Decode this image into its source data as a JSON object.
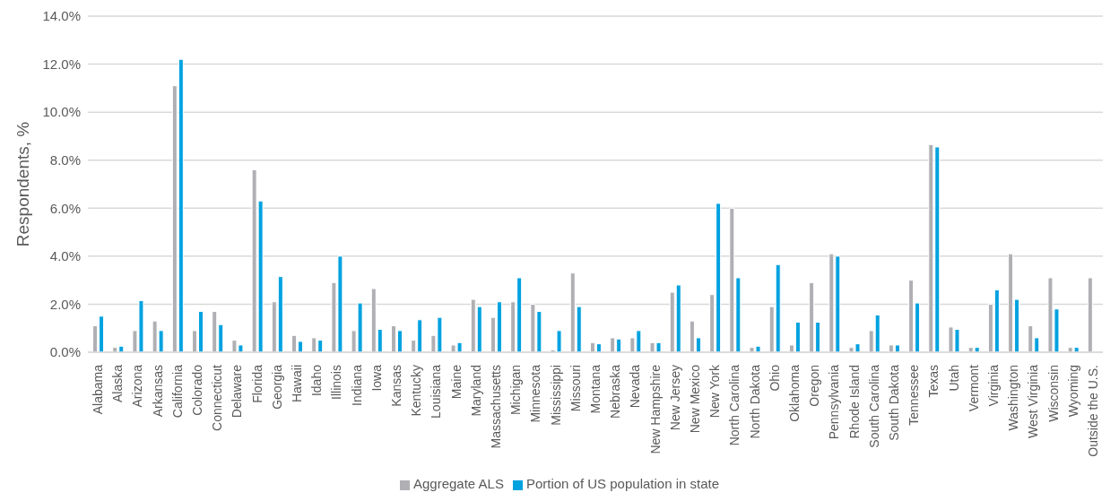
{
  "chart_data": {
    "type": "bar",
    "ylabel": "Respondents, %",
    "categories": [
      "Alabama",
      "Alaska",
      "Arizona",
      "Arkansas",
      "California",
      "Colorado",
      "Connecticut",
      "Delaware",
      "Florida",
      "Georgia",
      "Hawaii",
      "Idaho",
      "Illinois",
      "Indiana",
      "Iowa",
      "Kansas",
      "Kentucky",
      "Louisiana",
      "Maine",
      "Maryland",
      "Massachusetts",
      "Michigan",
      "Minnesota",
      "Mississippi",
      "Missouri",
      "Montana",
      "Nebraska",
      "Nevada",
      "New Hampshire",
      "New Jersey",
      "New Mexico",
      "New York",
      "North Carolina",
      "North Dakota",
      "Ohio",
      "Oklahoma",
      "Oregon",
      "Pennsylvania",
      "Rhode Island",
      "South Carolina",
      "South Dakota",
      "Tennessee",
      "Texas",
      "Utah",
      "Vermont",
      "Virginia",
      "Washington",
      "West Virginia",
      "Wisconsin",
      "Wyoming",
      "Outside the U.S."
    ],
    "series": [
      {
        "name": "Aggregate ALS",
        "color": "#b0b0b4",
        "values": [
          1.1,
          0.2,
          0.9,
          1.3,
          11.1,
          0.9,
          1.7,
          0.5,
          7.6,
          2.1,
          0.7,
          0.6,
          2.9,
          0.9,
          2.65,
          1.1,
          0.5,
          0.7,
          0.3,
          2.2,
          1.45,
          2.1,
          2.0,
          0.1,
          3.3,
          0.4,
          0.6,
          0.6,
          0.4,
          2.5,
          1.3,
          2.4,
          6.0,
          0.2,
          1.9,
          0.3,
          2.9,
          4.1,
          0.2,
          0.9,
          0.3,
          3.0,
          8.65,
          1.05,
          0.2,
          2.0,
          4.1,
          1.1,
          3.1,
          0.2,
          3.1
        ]
      },
      {
        "name": "Portion of US population in state",
        "color": "#00a2e0",
        "values": [
          1.5,
          0.25,
          2.15,
          0.9,
          12.2,
          1.7,
          1.15,
          0.3,
          6.3,
          3.15,
          0.45,
          0.5,
          4.0,
          2.05,
          0.95,
          0.9,
          1.35,
          1.45,
          0.4,
          1.9,
          2.1,
          3.1,
          1.7,
          0.9,
          1.9,
          0.35,
          0.55,
          0.9,
          0.4,
          2.8,
          0.6,
          6.2,
          3.1,
          0.25,
          3.65,
          1.25,
          1.25,
          4.0,
          0.35,
          1.55,
          0.3,
          2.05,
          8.55,
          0.95,
          0.2,
          2.6,
          2.2,
          0.6,
          1.8,
          0.2,
          null
        ]
      }
    ],
    "ylim": [
      0,
      14
    ],
    "yticks": [
      {
        "value": 0,
        "label": "0.0%"
      },
      {
        "value": 2,
        "label": "2.0%"
      },
      {
        "value": 4,
        "label": "4.0%"
      },
      {
        "value": 6,
        "label": "6.0%"
      },
      {
        "value": 8,
        "label": "8.0%"
      },
      {
        "value": 10,
        "label": "10.0%"
      },
      {
        "value": 12,
        "label": "12.0%"
      },
      {
        "value": 14,
        "label": "14.0%"
      }
    ],
    "grid": "y",
    "legend": "bottom"
  }
}
